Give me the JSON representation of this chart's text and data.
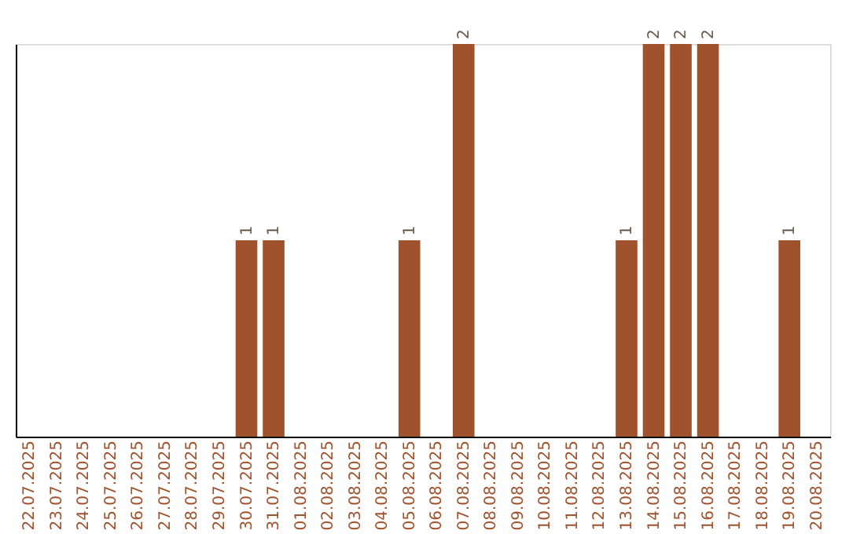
{
  "chart_data": {
    "type": "bar",
    "categories": [
      "22.07.2025",
      "23.07.2025",
      "24.07.2025",
      "25.07.2025",
      "26.07.2025",
      "27.07.2025",
      "28.07.2025",
      "29.07.2025",
      "30.07.2025",
      "31.07.2025",
      "01.08.2025",
      "02.08.2025",
      "03.08.2025",
      "04.08.2025",
      "05.08.2025",
      "06.08.2025",
      "07.08.2025",
      "08.08.2025",
      "09.08.2025",
      "10.08.2025",
      "11.08.2025",
      "12.08.2025",
      "13.08.2025",
      "14.08.2025",
      "15.08.2025",
      "16.08.2025",
      "17.08.2025",
      "18.08.2025",
      "19.08.2025",
      "20.08.2025"
    ],
    "values": [
      0,
      0,
      0,
      0,
      0,
      0,
      0,
      0,
      1,
      1,
      0,
      0,
      0,
      0,
      1,
      0,
      2,
      0,
      0,
      0,
      0,
      0,
      1,
      2,
      2,
      2,
      0,
      0,
      1,
      0
    ],
    "value_labels": [
      null,
      null,
      null,
      null,
      null,
      null,
      null,
      null,
      "1",
      "1",
      null,
      null,
      null,
      null,
      "1",
      null,
      "2",
      null,
      null,
      null,
      null,
      null,
      "1",
      "2",
      "2",
      "2",
      null,
      null,
      "1",
      null
    ],
    "color": "#a0522d",
    "tick_labels": "x"
  }
}
